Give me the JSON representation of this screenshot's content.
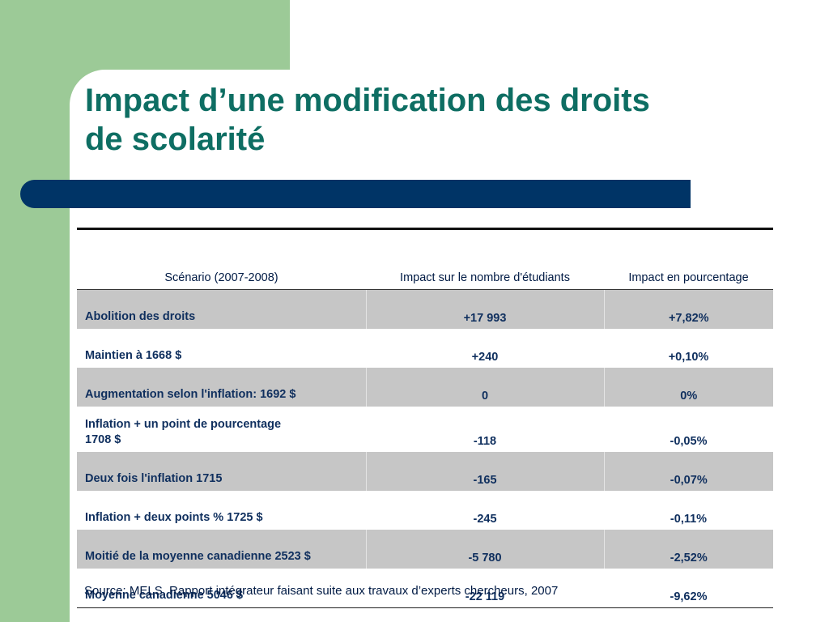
{
  "slide": {
    "title_lines": [
      "Impact d’une modification des droits",
      "de scolarité"
    ],
    "source": "Source: MELS, Rapport intégrateur faisant suite aux travaux d’experts chercheurs, 2007"
  },
  "table": {
    "headers": [
      "Scénario (2007-2008)",
      "Impact sur le nombre d'étudiants",
      "Impact en pourcentage"
    ],
    "rows": [
      {
        "scenario": "Abolition des droits",
        "students": "+17 993",
        "percent": "+7,82%"
      },
      {
        "scenario": "Maintien à 1668 $",
        "students": "+240",
        "percent": "+0,10%"
      },
      {
        "scenario": "Augmentation selon l'inflation: 1692 $",
        "students": "0",
        "percent": "0%"
      },
      {
        "scenario_lines": [
          "Inflation + un point de pourcentage",
          "1708 $"
        ],
        "students": "-118",
        "percent": "-0,05%"
      },
      {
        "scenario": "Deux fois l'inflation 1715",
        "students": "-165",
        "percent": "-0,07%"
      },
      {
        "scenario": "Inflation + deux points % 1725 $",
        "students": "-245",
        "percent": "-0,11%"
      },
      {
        "scenario": "Moitié de la moyenne canadienne 2523 $",
        "students": "-5 780",
        "percent": "-2,52%"
      },
      {
        "scenario": "Moyenne canadienne 5046 $",
        "students": "-22 119",
        "percent": "-9,62%"
      }
    ]
  },
  "colors": {
    "title": "#0e6e63",
    "accent_green": "#9cca97",
    "accent_navy": "#003466",
    "row_shade": "#c6c6c6",
    "text": "#0f2f5e"
  }
}
